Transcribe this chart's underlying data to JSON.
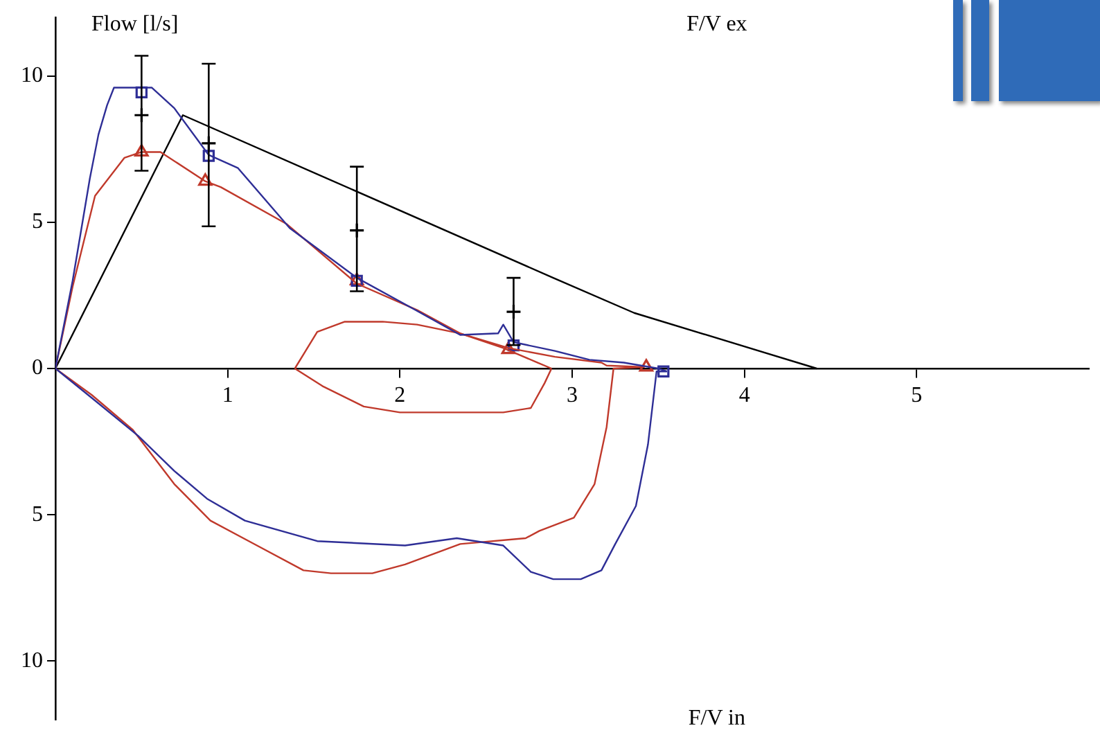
{
  "chart_data": {
    "type": "line",
    "ylabel": "Flow [l/s]",
    "annotations": [
      "F/V ex",
      "F/V in"
    ],
    "xlim": [
      0,
      6
    ],
    "ylim": [
      -12,
      12
    ],
    "xticks": [
      1,
      2,
      3,
      4,
      5
    ],
    "yticks": [
      {
        "value": -10,
        "label": "10"
      },
      {
        "value": -5,
        "label": "5"
      },
      0,
      5,
      10
    ],
    "grid": false,
    "legend": false,
    "series": [
      {
        "type": "line",
        "color": "#2e2e96",
        "marker": "none",
        "x": [
          0,
          0.1,
          0.2,
          0.25,
          0.3,
          0.34,
          0.45,
          0.56,
          0.69,
          0.89,
          1.06,
          1.36,
          1.75,
          2.09,
          2.35,
          2.57,
          2.6,
          2.66,
          2.9,
          3.1,
          3.3,
          3.5,
          3.55
        ],
        "values": [
          0,
          3.0,
          6.5,
          8.0,
          9.0,
          9.6,
          9.6,
          9.6,
          8.9,
          7.3,
          6.85,
          4.8,
          3.1,
          2.0,
          1.15,
          1.2,
          1.5,
          0.9,
          0.6,
          0.3,
          0.2,
          0.0,
          -0.1
        ]
      },
      {
        "type": "line",
        "color": "#2e2e96",
        "marker": "none",
        "x": [
          0,
          0.21,
          0.48,
          0.69,
          0.88,
          1.1,
          1.52,
          2.03,
          2.33,
          2.6,
          2.76,
          2.89,
          3.05,
          3.17,
          3.25,
          3.37,
          3.44,
          3.49,
          3.55
        ],
        "values": [
          0,
          -1.0,
          -2.3,
          -3.5,
          -4.45,
          -5.2,
          -5.9,
          -6.05,
          -5.8,
          -6.05,
          -6.95,
          -7.2,
          -7.2,
          -6.9,
          -6.0,
          -4.7,
          -2.6,
          -0.1,
          -0.1
        ]
      },
      {
        "type": "line",
        "color": "#c0392b",
        "marker": "none",
        "x": [
          0,
          0.1,
          0.23,
          0.4,
          0.5,
          0.61,
          0.87,
          0.96,
          1.34,
          1.75,
          2.1,
          2.35,
          2.63,
          2.9,
          3.17,
          3.2,
          3.42
        ],
        "values": [
          0,
          2.8,
          5.9,
          7.2,
          7.4,
          7.4,
          6.4,
          6.2,
          4.95,
          2.9,
          2.0,
          1.2,
          0.7,
          0.4,
          0.2,
          0.1,
          0.05
        ]
      },
      {
        "type": "line",
        "color": "#c0392b",
        "marker": "none",
        "x": [
          0,
          0.21,
          0.45,
          0.69,
          0.9,
          1.17,
          1.44,
          1.6,
          1.84,
          2.03,
          2.35,
          2.73,
          2.81,
          3.01,
          3.13,
          3.2,
          3.24,
          3.42
        ],
        "values": [
          0,
          -0.9,
          -2.1,
          -3.95,
          -5.2,
          -6.05,
          -6.9,
          -7.0,
          -7.0,
          -6.7,
          -6.0,
          -5.8,
          -5.55,
          -5.1,
          -3.95,
          -2.0,
          0,
          0.05
        ]
      },
      {
        "type": "line",
        "color": "#c0392b",
        "marker": "none",
        "x": [
          1.39,
          1.52,
          1.68,
          1.9,
          2.1,
          2.35,
          2.6,
          2.8,
          2.88
        ],
        "values": [
          0,
          1.25,
          1.6,
          1.6,
          1.5,
          1.2,
          0.7,
          0.2,
          0
        ]
      },
      {
        "type": "line",
        "color": "#c0392b",
        "marker": "none",
        "x": [
          1.39,
          1.55,
          1.79,
          2.0,
          2.6,
          2.76,
          2.84,
          2.88
        ],
        "values": [
          0,
          -0.6,
          -1.3,
          -1.5,
          -1.5,
          -1.35,
          -0.5,
          0
        ]
      },
      {
        "type": "line",
        "color": "#000000",
        "marker": "none",
        "x": [
          0,
          0.74,
          2.89,
          3.36,
          4.42
        ],
        "values": [
          0,
          8.66,
          3.1,
          1.9,
          0
        ]
      },
      {
        "type": "scatter",
        "color": "#2e2e96",
        "marker": "square",
        "x": [
          0.5,
          0.89,
          1.75,
          2.66,
          3.53
        ],
        "values": [
          9.44,
          7.27,
          3.0,
          0.79,
          -0.1
        ]
      },
      {
        "type": "scatter",
        "color": "#c0392b",
        "marker": "triangle",
        "x": [
          0.5,
          0.87,
          1.75,
          2.63,
          3.43
        ],
        "values": [
          7.4,
          6.4,
          3.0,
          0.65,
          0.05
        ]
      },
      {
        "type": "scatter",
        "color": "#000000",
        "marker": "cross",
        "x": [
          0.5,
          0.89,
          1.75,
          2.66
        ],
        "values": [
          8.66,
          7.7,
          4.72,
          1.94
        ],
        "errors": [
          [
            6.76,
            10.69
          ],
          [
            4.86,
            10.42
          ],
          [
            2.64,
            6.9
          ],
          [
            0.8,
            3.1
          ]
        ]
      }
    ]
  }
}
